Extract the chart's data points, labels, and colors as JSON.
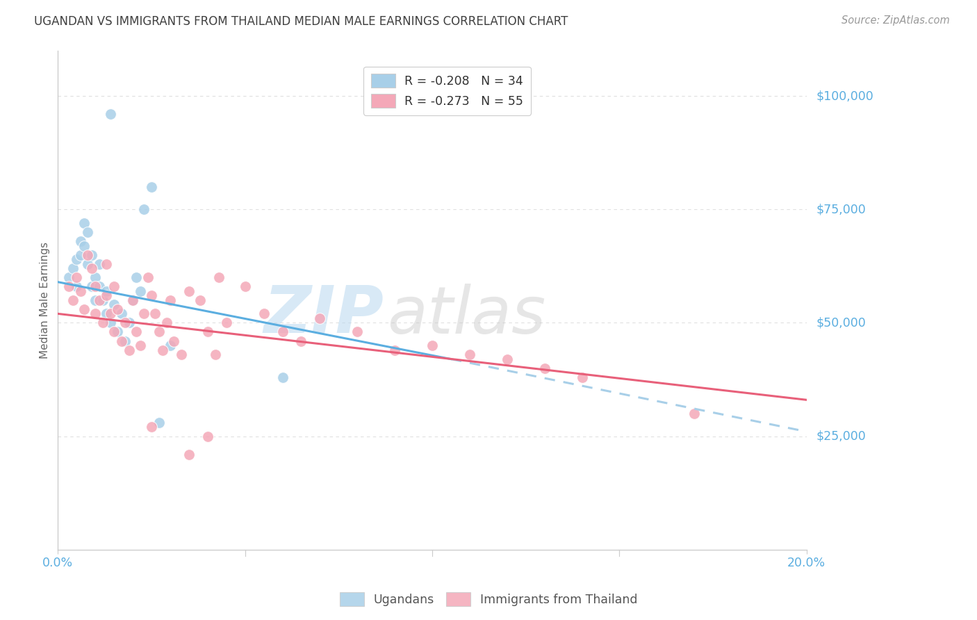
{
  "title": "UGANDAN VS IMMIGRANTS FROM THAILAND MEDIAN MALE EARNINGS CORRELATION CHART",
  "source": "Source: ZipAtlas.com",
  "ylabel": "Median Male Earnings",
  "ytick_labels": [
    "$25,000",
    "$50,000",
    "$75,000",
    "$100,000"
  ],
  "ytick_values": [
    25000,
    50000,
    75000,
    100000
  ],
  "ymin": 0,
  "ymax": 110000,
  "xmin": 0.0,
  "xmax": 0.2,
  "watermark_zip": "ZIP",
  "watermark_atlas": "atlas",
  "blue_color": "#a8cfe8",
  "pink_color": "#f4a8b8",
  "blue_line_color": "#5baee0",
  "pink_line_color": "#e8607a",
  "dashed_line_color": "#a8cfe8",
  "axis_color": "#cccccc",
  "grid_color": "#e0e0e0",
  "title_color": "#404040",
  "right_label_color": "#5baee0",
  "source_color": "#999999",
  "ugandan_points": [
    [
      0.003,
      60000
    ],
    [
      0.004,
      62000
    ],
    [
      0.005,
      58000
    ],
    [
      0.005,
      64000
    ],
    [
      0.006,
      68000
    ],
    [
      0.006,
      65000
    ],
    [
      0.007,
      72000
    ],
    [
      0.007,
      67000
    ],
    [
      0.008,
      70000
    ],
    [
      0.008,
      63000
    ],
    [
      0.009,
      58000
    ],
    [
      0.009,
      65000
    ],
    [
      0.01,
      60000
    ],
    [
      0.01,
      55000
    ],
    [
      0.011,
      63000
    ],
    [
      0.011,
      58000
    ],
    [
      0.012,
      55000
    ],
    [
      0.013,
      52000
    ],
    [
      0.013,
      57000
    ],
    [
      0.014,
      50000
    ],
    [
      0.015,
      54000
    ],
    [
      0.016,
      48000
    ],
    [
      0.017,
      52000
    ],
    [
      0.018,
      46000
    ],
    [
      0.019,
      50000
    ],
    [
      0.02,
      55000
    ],
    [
      0.021,
      60000
    ],
    [
      0.022,
      57000
    ],
    [
      0.023,
      75000
    ],
    [
      0.025,
      80000
    ],
    [
      0.014,
      96000
    ],
    [
      0.03,
      45000
    ],
    [
      0.06,
      38000
    ],
    [
      0.027,
      28000
    ]
  ],
  "thai_points": [
    [
      0.003,
      58000
    ],
    [
      0.004,
      55000
    ],
    [
      0.005,
      60000
    ],
    [
      0.006,
      57000
    ],
    [
      0.007,
      53000
    ],
    [
      0.008,
      65000
    ],
    [
      0.009,
      62000
    ],
    [
      0.01,
      58000
    ],
    [
      0.01,
      52000
    ],
    [
      0.011,
      55000
    ],
    [
      0.012,
      50000
    ],
    [
      0.013,
      63000
    ],
    [
      0.013,
      56000
    ],
    [
      0.014,
      52000
    ],
    [
      0.015,
      58000
    ],
    [
      0.015,
      48000
    ],
    [
      0.016,
      53000
    ],
    [
      0.017,
      46000
    ],
    [
      0.018,
      50000
    ],
    [
      0.019,
      44000
    ],
    [
      0.02,
      55000
    ],
    [
      0.021,
      48000
    ],
    [
      0.022,
      45000
    ],
    [
      0.023,
      52000
    ],
    [
      0.024,
      60000
    ],
    [
      0.025,
      56000
    ],
    [
      0.026,
      52000
    ],
    [
      0.027,
      48000
    ],
    [
      0.028,
      44000
    ],
    [
      0.029,
      50000
    ],
    [
      0.03,
      55000
    ],
    [
      0.031,
      46000
    ],
    [
      0.033,
      43000
    ],
    [
      0.035,
      57000
    ],
    [
      0.038,
      55000
    ],
    [
      0.04,
      48000
    ],
    [
      0.042,
      43000
    ],
    [
      0.043,
      60000
    ],
    [
      0.045,
      50000
    ],
    [
      0.05,
      58000
    ],
    [
      0.055,
      52000
    ],
    [
      0.06,
      48000
    ],
    [
      0.065,
      46000
    ],
    [
      0.07,
      51000
    ],
    [
      0.08,
      48000
    ],
    [
      0.09,
      44000
    ],
    [
      0.1,
      45000
    ],
    [
      0.11,
      43000
    ],
    [
      0.12,
      42000
    ],
    [
      0.13,
      40000
    ],
    [
      0.14,
      38000
    ],
    [
      0.17,
      30000
    ],
    [
      0.035,
      21000
    ],
    [
      0.04,
      25000
    ],
    [
      0.025,
      27000
    ]
  ],
  "blue_trendline_solid": [
    [
      0.0,
      59000
    ],
    [
      0.105,
      42000
    ]
  ],
  "blue_trendline_dashed": [
    [
      0.105,
      42000
    ],
    [
      0.2,
      26000
    ]
  ],
  "pink_trendline": [
    [
      0.0,
      52000
    ],
    [
      0.2,
      33000
    ]
  ]
}
